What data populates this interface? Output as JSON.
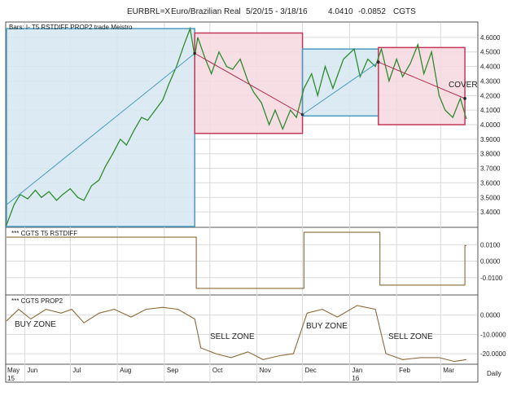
{
  "header": {
    "symbol": "EURBRL=X",
    "name": "Euro/Brazilian Real",
    "range": "5/20/15 - 3/18/16",
    "last": "4.0410",
    "change": "-0.0852",
    "tag": "CGTS"
  },
  "timeframe_label": "Daily",
  "colors": {
    "price_line": "#2e8b2e",
    "indicator_line": "#8b6a3a",
    "buy_box_fill": "#d6e8f1",
    "buy_box_stroke": "#4a9bbf",
    "sell_box_fill": "#f6d8df",
    "sell_box_stroke": "#c4385a",
    "trend_line_buy": "#4a9bbf",
    "trend_line_sell": "#b03050",
    "grid": "#d9d9d9",
    "frame": "#555555"
  },
  "chart_data": [
    {
      "type": "line",
      "panel": "price",
      "title": "Bars: I-     T5 RSTDIFF PROP2 trade Meistro",
      "ylim": [
        3.3,
        4.7
      ],
      "yticks": [
        3.4,
        3.5,
        3.6,
        3.7,
        3.8,
        3.9,
        4.0,
        4.1,
        4.2,
        4.3,
        4.4,
        4.5,
        4.6
      ],
      "ytick_labels": [
        "3.4000",
        "3.5000",
        "3.6000",
        "3.7000",
        "3.8000",
        "3.9000",
        "4.0000",
        "4.1000",
        "4.2000",
        "4.3000",
        "4.4000",
        "4.5000",
        "4.6000"
      ],
      "x_months": [
        "May 15",
        "Jun",
        "Jul",
        "Aug",
        "Sep",
        "Oct",
        "Nov",
        "Dec",
        "Jan 16",
        "Feb",
        "Mar"
      ],
      "series": [
        {
          "x": [
            "2015-05-20",
            "2015-05-25",
            "2015-05-29",
            "2015-06-03",
            "2015-06-08",
            "2015-06-12",
            "2015-06-17",
            "2015-06-22",
            "2015-06-26",
            "2015-07-01",
            "2015-07-06",
            "2015-07-10",
            "2015-07-15",
            "2015-07-20",
            "2015-07-24",
            "2015-07-29",
            "2015-08-03",
            "2015-08-07",
            "2015-08-12",
            "2015-08-17",
            "2015-08-21",
            "2015-08-26",
            "2015-08-31",
            "2015-09-04",
            "2015-09-09",
            "2015-09-14",
            "2015-09-18",
            "2015-09-21",
            "2015-09-23",
            "2015-09-28",
            "2015-10-02",
            "2015-10-07",
            "2015-10-12",
            "2015-10-16",
            "2015-10-21",
            "2015-10-26",
            "2015-10-30",
            "2015-11-04",
            "2015-11-09",
            "2015-11-13",
            "2015-11-18",
            "2015-11-23",
            "2015-11-27",
            "2015-12-02",
            "2015-12-07",
            "2015-12-11",
            "2015-12-16",
            "2015-12-21",
            "2015-12-28",
            "2016-01-04",
            "2016-01-08",
            "2016-01-13",
            "2016-01-18",
            "2016-01-22",
            "2016-01-27",
            "2016-02-01",
            "2016-02-05",
            "2016-02-10",
            "2016-02-15",
            "2016-02-19",
            "2016-02-24",
            "2016-02-29",
            "2016-03-04",
            "2016-03-09",
            "2016-03-14",
            "2016-03-18"
          ],
          "y": [
            3.31,
            3.45,
            3.52,
            3.49,
            3.55,
            3.5,
            3.54,
            3.48,
            3.52,
            3.56,
            3.5,
            3.48,
            3.58,
            3.62,
            3.71,
            3.8,
            3.9,
            3.86,
            3.96,
            4.05,
            4.03,
            4.1,
            4.17,
            4.28,
            4.4,
            4.55,
            4.66,
            4.47,
            4.6,
            4.45,
            4.35,
            4.5,
            4.4,
            4.38,
            4.45,
            4.3,
            4.22,
            4.15,
            4.0,
            4.1,
            3.97,
            4.1,
            4.05,
            4.25,
            4.35,
            4.2,
            4.4,
            4.25,
            4.45,
            4.52,
            4.33,
            4.45,
            4.4,
            4.52,
            4.3,
            4.45,
            4.33,
            4.42,
            4.55,
            4.35,
            4.5,
            4.2,
            4.1,
            4.05,
            4.18,
            4.04
          ]
        }
      ],
      "annotations": [
        "COVER"
      ]
    },
    {
      "type": "line",
      "panel": "rstdiff",
      "title": "*** CGTS T5 RSTDIFF",
      "ylim": [
        -0.02,
        0.02
      ],
      "ytick_labels": [
        "0.0100",
        "0.0000",
        "-0.0100"
      ],
      "yticks": [
        0.01,
        0.0,
        -0.01
      ],
      "series": [
        {
          "x": [
            "2015-05-20",
            "2015-09-21",
            "2015-09-22",
            "2015-12-01",
            "2015-12-02",
            "2016-01-20",
            "2016-01-21",
            "2016-03-16",
            "2016-03-17",
            "2016-03-18"
          ],
          "y": [
            0.0145,
            0.0145,
            -0.0165,
            -0.0165,
            0.0175,
            0.0175,
            -0.0145,
            -0.0145,
            0.0095,
            0.0095
          ]
        }
      ]
    },
    {
      "type": "line",
      "panel": "prop2",
      "title": "*** CGTS PROP2",
      "ylim": [
        -25,
        10
      ],
      "ytick_labels": [
        "0.0000",
        "-10.0000",
        "-20.0000"
      ],
      "yticks": [
        0,
        -10,
        -20
      ],
      "series": [
        {
          "x": [
            "2015-05-20",
            "2015-05-28",
            "2015-06-05",
            "2015-06-15",
            "2015-06-25",
            "2015-07-02",
            "2015-07-10",
            "2015-07-20",
            "2015-07-30",
            "2015-08-10",
            "2015-08-20",
            "2015-08-31",
            "2015-09-10",
            "2015-09-21",
            "2015-09-25",
            "2015-10-05",
            "2015-10-15",
            "2015-10-26",
            "2015-11-05",
            "2015-11-16",
            "2015-11-25",
            "2015-12-04",
            "2015-12-14",
            "2015-12-24",
            "2016-01-06",
            "2016-01-18",
            "2016-01-25",
            "2016-02-05",
            "2016-02-17",
            "2016-02-29",
            "2016-03-10",
            "2016-03-18"
          ],
          "y": [
            -3,
            3,
            -2,
            3,
            1,
            3,
            -4,
            1,
            3,
            -1,
            3,
            4,
            3,
            -2,
            -17,
            -20,
            -22,
            -19,
            -23,
            -21,
            -20,
            1,
            3,
            -1,
            5,
            3,
            -20,
            -23,
            -22,
            -22,
            -24,
            -23
          ]
        }
      ],
      "annotations": [
        "BUY ZONE",
        "SELL ZONE",
        "BUY ZONE",
        "SELL ZONE"
      ]
    }
  ],
  "trade_boxes": [
    {
      "kind": "buy",
      "x0": "2015-05-20",
      "x1": "2015-09-21",
      "y0": 3.3,
      "y1": 4.66
    },
    {
      "kind": "sell",
      "x0": "2015-09-21",
      "x1": "2015-12-01",
      "y0": 3.94,
      "y1": 4.63
    },
    {
      "kind": "buy",
      "x0": "2015-12-01",
      "x1": "2016-01-20",
      "y0": 4.06,
      "y1": 4.52
    },
    {
      "kind": "sell",
      "x0": "2016-01-20",
      "x1": "2016-03-17",
      "y0": 4.0,
      "y1": 4.53
    }
  ],
  "trend_lines": [
    {
      "kind": "buy",
      "x0": "2015-05-20",
      "y0": 3.45,
      "x1": "2015-09-21",
      "y1": 4.49
    },
    {
      "kind": "sell",
      "x0": "2015-09-21",
      "y0": 4.49,
      "x1": "2015-12-01",
      "y1": 4.07
    },
    {
      "kind": "buy",
      "x0": "2015-12-01",
      "y0": 4.07,
      "x1": "2016-01-20",
      "y1": 4.43
    },
    {
      "kind": "sell",
      "x0": "2016-01-20",
      "y0": 4.43,
      "x1": "2016-03-17",
      "y1": 4.18
    }
  ]
}
